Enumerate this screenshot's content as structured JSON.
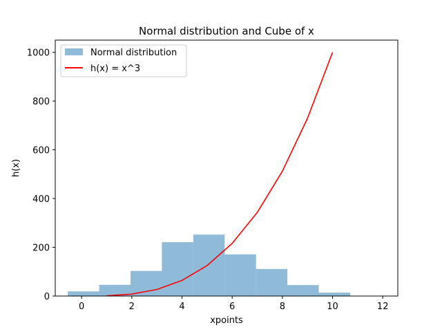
{
  "chart_data": {
    "type": "bar+line",
    "title": "Normal distribution and Cube of x",
    "xlabel": "xpoints",
    "ylabel": "h(x)",
    "xlim": [
      -1.05,
      12.6
    ],
    "ylim": [
      0,
      1050
    ],
    "x_ticks": [
      0,
      2,
      4,
      6,
      8,
      10,
      12
    ],
    "y_ticks": [
      0,
      200,
      400,
      600,
      800,
      1000
    ],
    "legend_position": "top-left",
    "histogram": {
      "name": "Normal distribution",
      "color": "#1f77b4",
      "opacity": 0.5,
      "bins": [
        {
          "start": -0.55,
          "end": 0.7,
          "count": 19
        },
        {
          "start": 0.7,
          "end": 1.95,
          "count": 46
        },
        {
          "start": 1.95,
          "end": 3.2,
          "count": 103
        },
        {
          "start": 3.2,
          "end": 4.45,
          "count": 221
        },
        {
          "start": 4.45,
          "end": 5.7,
          "count": 252
        },
        {
          "start": 5.7,
          "end": 6.95,
          "count": 171
        },
        {
          "start": 6.95,
          "end": 8.2,
          "count": 111
        },
        {
          "start": 8.2,
          "end": 9.45,
          "count": 45
        },
        {
          "start": 9.45,
          "end": 10.7,
          "count": 14
        },
        {
          "start": 10.7,
          "end": 11.95,
          "count": 1
        }
      ]
    },
    "line": {
      "name": "h(x) = x^3",
      "color": "#ff0000",
      "x": [
        1,
        2,
        3,
        4,
        5,
        6,
        7,
        8,
        9,
        10
      ],
      "y": [
        1,
        8,
        27,
        64,
        125,
        216,
        343,
        512,
        729,
        1000
      ]
    }
  }
}
